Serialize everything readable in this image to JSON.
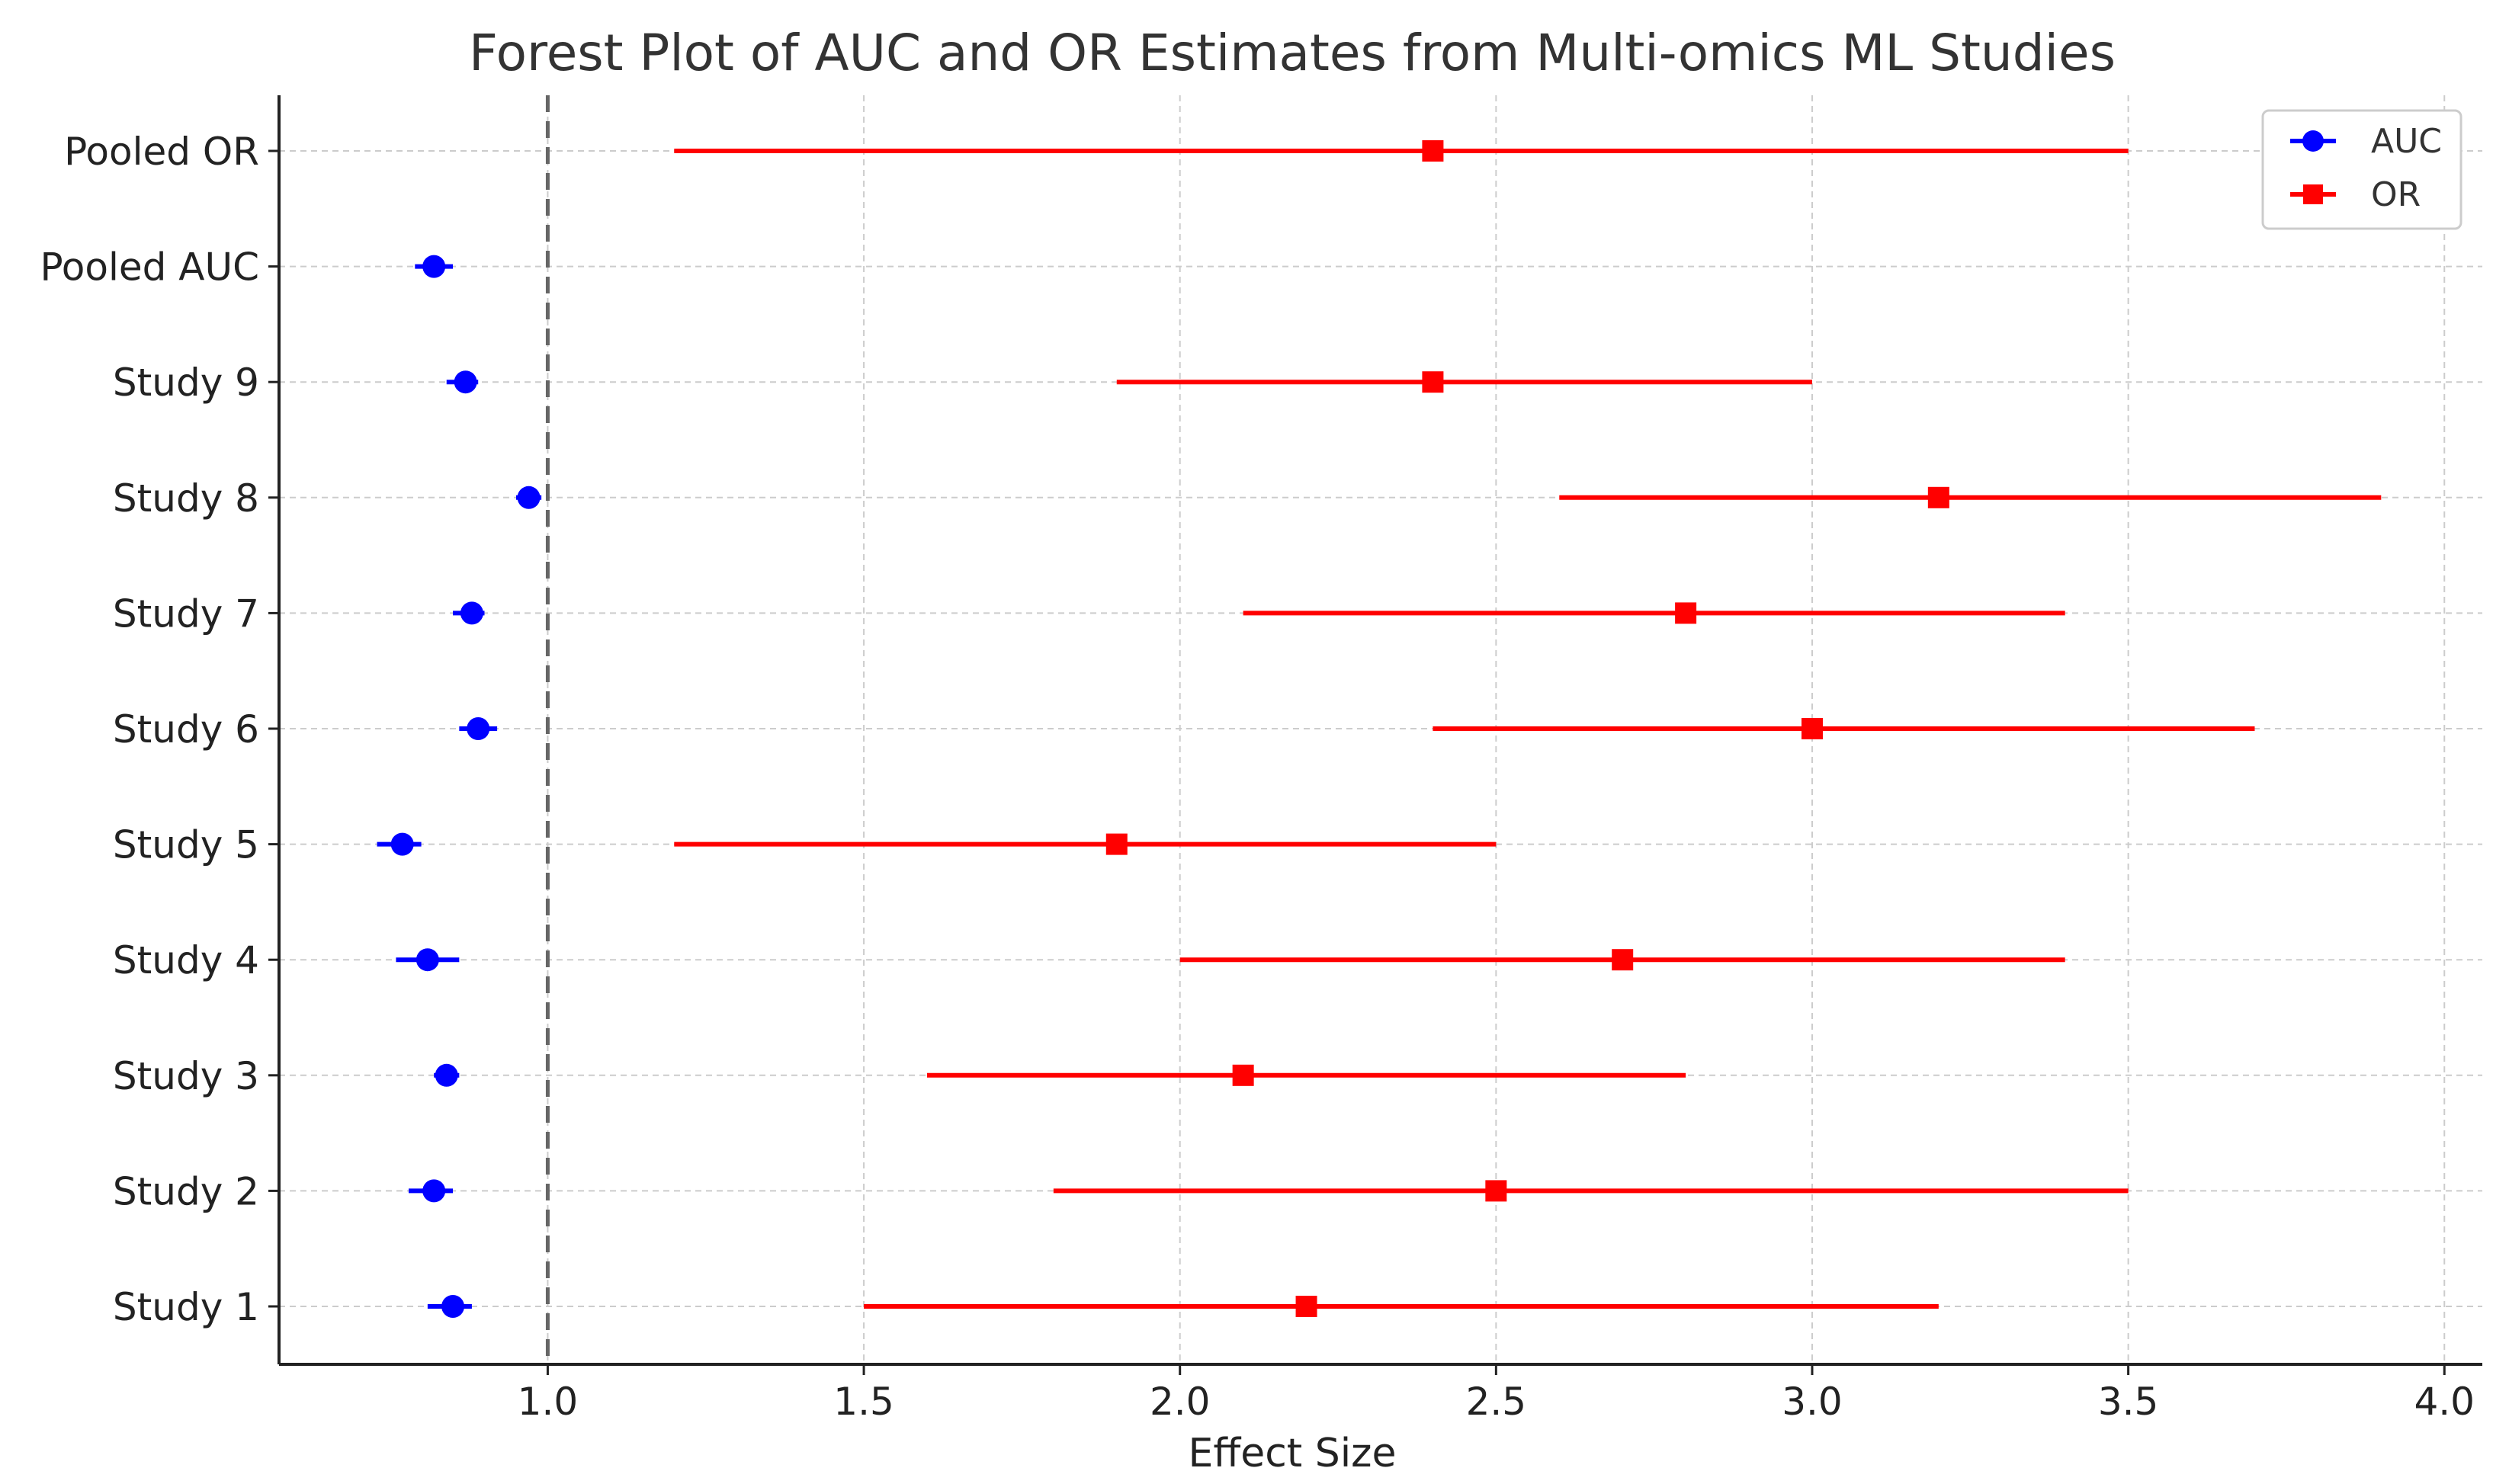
{
  "chart_data": {
    "type": "forest",
    "title": "Forest Plot of AUC and OR Estimates from Multi-omics ML Studies",
    "xlabel": "Effect Size",
    "ylabel": "",
    "xlim": [
      0.575,
      4.06
    ],
    "xticks": [
      1.0,
      1.5,
      2.0,
      2.5,
      3.0,
      3.5,
      4.0
    ],
    "xtick_labels": [
      "1.0",
      "1.5",
      "2.0",
      "2.5",
      "3.0",
      "3.5",
      "4.0"
    ],
    "reference_line": 1.0,
    "grid": true,
    "legend_position": "top-right",
    "categories": [
      "Study 1",
      "Study 2",
      "Study 3",
      "Study 4",
      "Study 5",
      "Study 6",
      "Study 7",
      "Study 8",
      "Study 9",
      "Pooled AUC",
      "Pooled OR"
    ],
    "series": [
      {
        "name": "AUC",
        "color": "#0000ff",
        "marker": "circle",
        "points": [
          {
            "category": "Study 1",
            "estimate": 0.85,
            "low": 0.81,
            "high": 0.88
          },
          {
            "category": "Study 2",
            "estimate": 0.82,
            "low": 0.78,
            "high": 0.85
          },
          {
            "category": "Study 3",
            "estimate": 0.84,
            "low": 0.82,
            "high": 0.86
          },
          {
            "category": "Study 4",
            "estimate": 0.81,
            "low": 0.76,
            "high": 0.86
          },
          {
            "category": "Study 5",
            "estimate": 0.77,
            "low": 0.73,
            "high": 0.8
          },
          {
            "category": "Study 6",
            "estimate": 0.89,
            "low": 0.86,
            "high": 0.92
          },
          {
            "category": "Study 7",
            "estimate": 0.88,
            "low": 0.85,
            "high": 0.9
          },
          {
            "category": "Study 8",
            "estimate": 0.97,
            "low": 0.95,
            "high": 0.99
          },
          {
            "category": "Study 9",
            "estimate": 0.87,
            "low": 0.84,
            "high": 0.89
          },
          {
            "category": "Pooled AUC",
            "estimate": 0.82,
            "low": 0.79,
            "high": 0.85
          }
        ]
      },
      {
        "name": "OR",
        "color": "#ff0000",
        "marker": "square",
        "points": [
          {
            "category": "Study 1",
            "estimate": 2.2,
            "low": 1.5,
            "high": 3.2
          },
          {
            "category": "Study 2",
            "estimate": 2.5,
            "low": 1.8,
            "high": 3.5
          },
          {
            "category": "Study 3",
            "estimate": 2.1,
            "low": 1.6,
            "high": 2.8
          },
          {
            "category": "Study 4",
            "estimate": 2.7,
            "low": 2.0,
            "high": 3.4
          },
          {
            "category": "Study 5",
            "estimate": 1.9,
            "low": 1.2,
            "high": 2.5
          },
          {
            "category": "Study 6",
            "estimate": 3.0,
            "low": 2.4,
            "high": 3.7
          },
          {
            "category": "Study 7",
            "estimate": 2.8,
            "low": 2.1,
            "high": 3.4
          },
          {
            "category": "Study 8",
            "estimate": 3.2,
            "low": 2.6,
            "high": 3.9
          },
          {
            "category": "Study 9",
            "estimate": 2.4,
            "low": 1.9,
            "high": 3.0
          },
          {
            "category": "Pooled OR",
            "estimate": 2.4,
            "low": 1.2,
            "high": 3.5
          }
        ]
      }
    ]
  }
}
